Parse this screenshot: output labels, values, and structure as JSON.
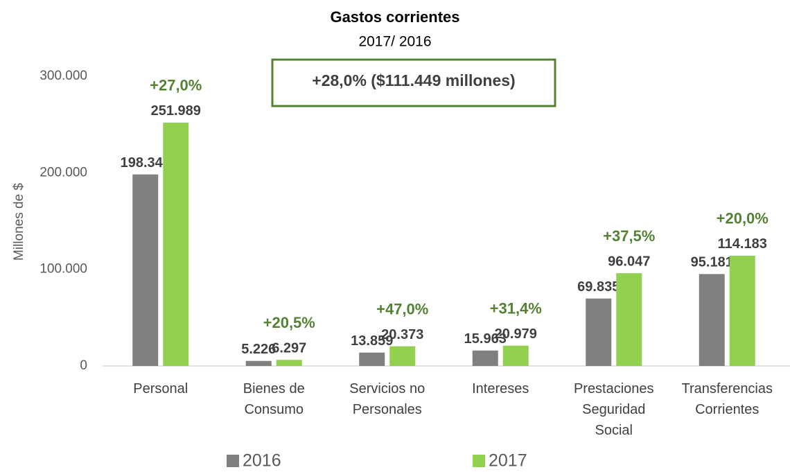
{
  "chart_data": {
    "type": "bar",
    "title": "Gastos corrientes",
    "subtitle": "2017/ 2016",
    "y_axis_label": "Millones de $",
    "total_label": "+28,0% ($111.449 millones)",
    "categories": [
      "Personal",
      "Bienes de Consumo",
      "Servicios no Personales",
      "Intereses",
      "Prestaciones Seguridad Social",
      "Transferencias Corrientes"
    ],
    "growth_labels": [
      "+27,0%",
      "+20,5%",
      "+47,0%",
      "+31,4%",
      "+37,5%",
      "+20,0%"
    ],
    "series": [
      {
        "name": "2016",
        "color": "#808080",
        "values": [
          198343,
          5226,
          13859,
          15963,
          69835,
          95181
        ],
        "value_labels": [
          "198.343",
          "5.226",
          "13.859",
          "15.963",
          "69.835",
          "95.181"
        ]
      },
      {
        "name": "2017",
        "color": "#92d050",
        "values": [
          251989,
          6297,
          20373,
          20979,
          96047,
          114183
        ],
        "value_labels": [
          "251.989",
          "6.297",
          "20.373",
          "20.979",
          "96.047",
          "114.183"
        ]
      }
    ],
    "ylim": [
      0,
      300000
    ],
    "yticks": [
      0,
      {
        "value": 100000,
        "label": "100.000"
      },
      {
        "value": 200000,
        "label": "200.000"
      },
      {
        "value": 300000,
        "label": "300.000"
      }
    ],
    "grid": false
  }
}
